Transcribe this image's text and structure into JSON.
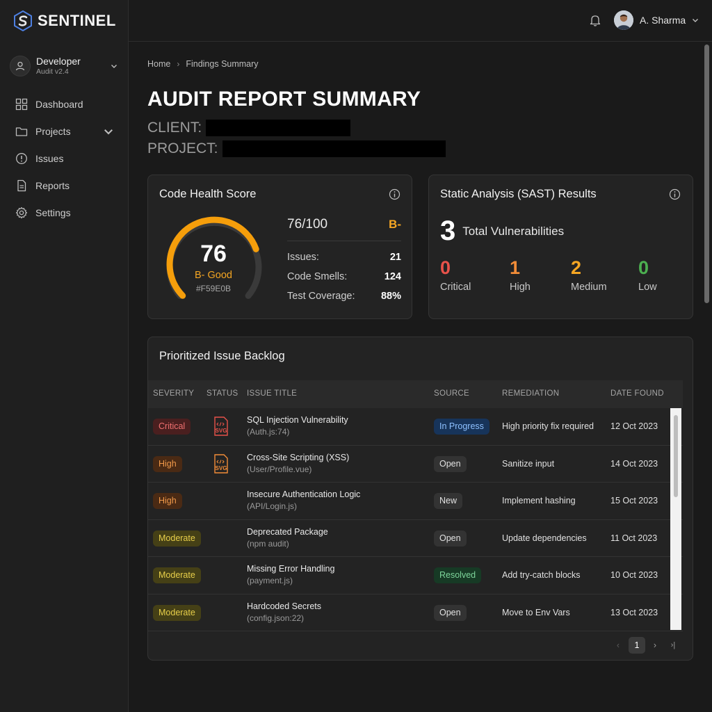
{
  "brand": {
    "name": "SENTINEL"
  },
  "profile": {
    "name": "Developer",
    "sub": "Audit v2.4"
  },
  "nav": [
    {
      "label": "Dashboard",
      "icon": "grid-icon"
    },
    {
      "label": "Projects",
      "icon": "folder-icon"
    },
    {
      "label": "Issues",
      "icon": "alert-circle-icon"
    },
    {
      "label": "Reports",
      "icon": "file-icon"
    },
    {
      "label": "Settings",
      "icon": "gear-icon"
    }
  ],
  "topbar": {
    "user_name": "A. Sharma"
  },
  "breadcrumb": {
    "home": "Home",
    "current": "Findings Summary"
  },
  "page": {
    "title": "AUDIT REPORT SUMMARY",
    "client_label": "CLIENT:",
    "project_label": "PROJECT:"
  },
  "health": {
    "title": "Code Health Score",
    "score": "76",
    "score_fraction": 0.76,
    "grade_text": "B- Good",
    "hex": "#F59E0B",
    "score_out_of": "76/100",
    "grade": "B-",
    "stats": [
      {
        "label": "Issues:",
        "value": "21"
      },
      {
        "label": "Code Smells:",
        "value": "124"
      },
      {
        "label": "Test Coverage:",
        "value": "88%"
      }
    ]
  },
  "sast": {
    "title": "Static Analysis (SAST) Results",
    "total": "3",
    "total_label": "Total Vulnerabilities",
    "levels": [
      {
        "count": "0",
        "label": "Critical",
        "color": "#e8524a"
      },
      {
        "count": "1",
        "label": "High",
        "color": "#f28c38"
      },
      {
        "count": "2",
        "label": "Medium",
        "color": "#f5a623"
      },
      {
        "count": "0",
        "label": "Low",
        "color": "#4caf50"
      }
    ]
  },
  "backlog": {
    "title": "Prioritized Issue Backlog",
    "columns": [
      "SEVERITY",
      "STATUS",
      "ISSUE TITLE",
      "SOURCE",
      "REMEDIATION",
      "DATE FOUND"
    ],
    "rows": [
      {
        "severity": "Critical",
        "sev_class": "b-critical",
        "status_icon": "svg-file-red",
        "title": "SQL Injection Vulnerability",
        "sub": "(Auth.js:74)",
        "source": "In Progress",
        "src_class": "s-progress",
        "remediation": "High priority fix required",
        "date": "12 Oct 2023"
      },
      {
        "severity": "High",
        "sev_class": "b-high",
        "status_icon": "svg-file-orange",
        "title": "Cross-Site Scripting (XSS)",
        "sub": "(User/Profile.vue)",
        "source": "Open",
        "src_class": "s-open",
        "remediation": "Sanitize input",
        "date": "14 Oct 2023"
      },
      {
        "severity": "High",
        "sev_class": "b-high",
        "status_icon": "",
        "title": "Insecure Authentication Logic",
        "sub": "(API/Login.js)",
        "source": "New",
        "src_class": "s-new",
        "remediation": "Implement hashing",
        "date": "15 Oct 2023"
      },
      {
        "severity": "Moderate",
        "sev_class": "b-moderate",
        "status_icon": "",
        "title": "Deprecated Package",
        "sub": "(npm audit)",
        "source": "Open",
        "src_class": "s-open",
        "remediation": "Update dependencies",
        "date": "11 Oct 2023"
      },
      {
        "severity": "Moderate",
        "sev_class": "b-moderate",
        "status_icon": "",
        "title": "Missing Error Handling",
        "sub": "(payment.js)",
        "source": "Resolved",
        "src_class": "s-resolved",
        "remediation": "Add try-catch blocks",
        "date": "10 Oct 2023"
      },
      {
        "severity": "Moderate",
        "sev_class": "b-moderate",
        "status_icon": "",
        "title": "Hardcoded Secrets",
        "sub": "(config.json:22)",
        "source": "Open",
        "src_class": "s-open",
        "remediation": "Move to Env Vars",
        "date": "13 Oct 2023"
      }
    ],
    "pagination": {
      "current": "1"
    }
  },
  "colors": {
    "accent": "#F59E0B",
    "background": "#1a1a1a",
    "card": "#232323"
  }
}
